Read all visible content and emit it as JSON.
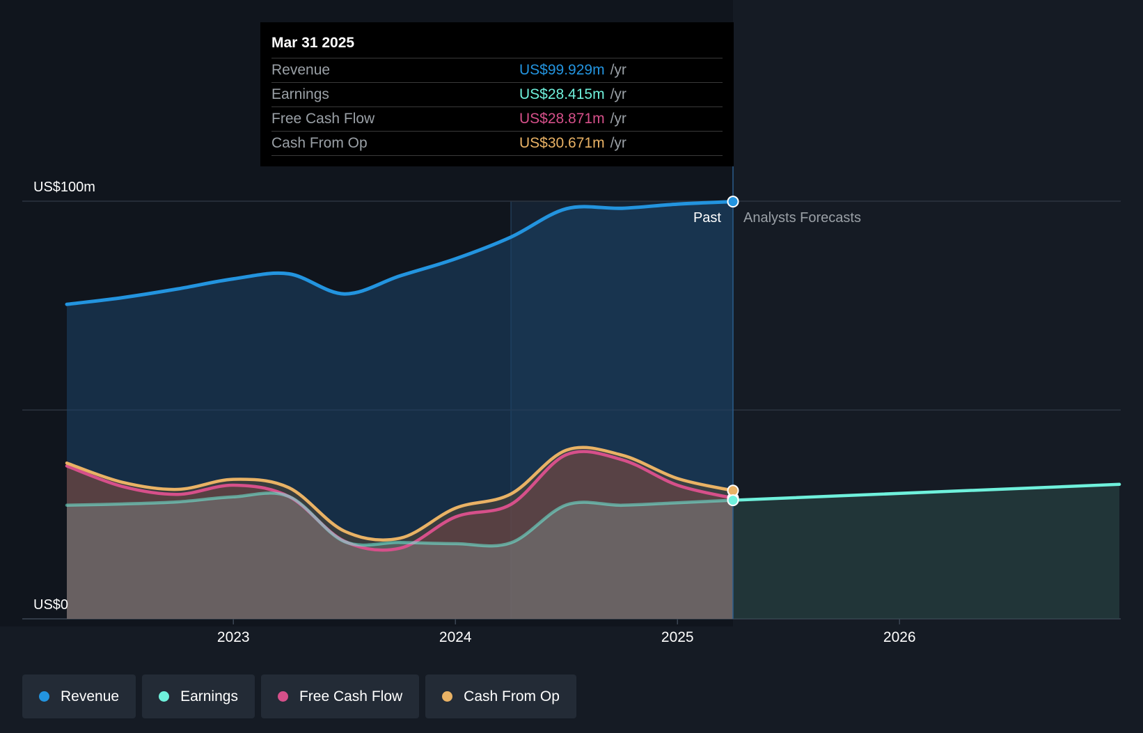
{
  "tooltip": {
    "date": "Mar 31 2025",
    "unit": "/yr",
    "rows": [
      {
        "label": "Revenue",
        "value": "US$99.929m",
        "color": "#2394df"
      },
      {
        "label": "Earnings",
        "value": "US$28.415m",
        "color": "#6ff1dc"
      },
      {
        "label": "Free Cash Flow",
        "value": "US$28.871m",
        "color": "#d6508a"
      },
      {
        "label": "Cash From Op",
        "value": "US$30.671m",
        "color": "#e9b265"
      }
    ]
  },
  "chart_data": {
    "type": "area",
    "title": "",
    "xlabel": "",
    "ylabel": "",
    "ylim": [
      0,
      100
    ],
    "xlim": [
      2022.05,
      2026.99
    ],
    "y_tick_labels": [
      {
        "value": 100,
        "label": "US$100m"
      },
      {
        "value": 0,
        "label": "US$0"
      }
    ],
    "gridlines": [
      0,
      50,
      100
    ],
    "x_ticks": [
      {
        "value": 2023,
        "label": "2023"
      },
      {
        "value": 2024,
        "label": "2024"
      },
      {
        "value": 2025,
        "label": "2025"
      },
      {
        "value": 2026,
        "label": "2026"
      }
    ],
    "past_label": "Past",
    "forecast_label": "Analysts Forecasts",
    "past_end": 2025.25,
    "highlight_start": 2024.25,
    "series": [
      {
        "name": "Revenue",
        "color": "#2394df",
        "x": [
          2022.25,
          2022.5,
          2022.75,
          2023.0,
          2023.25,
          2023.5,
          2023.75,
          2024.0,
          2024.25,
          2024.5,
          2024.75,
          2025.0,
          2025.25
        ],
        "values": [
          75.3,
          76.9,
          79.0,
          81.4,
          82.6,
          77.8,
          82.1,
          86.2,
          91.4,
          98.2,
          98.3,
          99.3,
          99.9
        ]
      },
      {
        "name": "Free Cash Flow",
        "color": "#d6508a",
        "x": [
          2022.25,
          2022.5,
          2022.75,
          2023.0,
          2023.25,
          2023.5,
          2023.75,
          2024.0,
          2024.25,
          2024.5,
          2024.75,
          2025.0,
          2025.25
        ],
        "values": [
          36.6,
          31.7,
          29.8,
          32.0,
          29.3,
          18.6,
          16.9,
          24.4,
          27.4,
          39.3,
          38.1,
          32.0,
          28.9
        ]
      },
      {
        "name": "Cash From Op",
        "color": "#e9b265",
        "x": [
          2022.25,
          2022.5,
          2022.75,
          2023.0,
          2023.25,
          2023.5,
          2023.75,
          2024.0,
          2024.25,
          2024.5,
          2024.75,
          2025.0,
          2025.25
        ],
        "values": [
          37.3,
          32.7,
          31.0,
          33.4,
          31.4,
          21.0,
          19.3,
          26.5,
          29.9,
          40.4,
          39.2,
          33.6,
          30.7
        ]
      },
      {
        "name": "Earnings",
        "color": "#6ff1dc",
        "x": [
          2022.25,
          2022.5,
          2022.75,
          2023.0,
          2023.25,
          2023.5,
          2023.75,
          2024.0,
          2024.25,
          2024.5,
          2024.75,
          2025.0,
          2025.25
        ],
        "values": [
          27.2,
          27.5,
          28.0,
          29.2,
          29.3,
          18.5,
          18.3,
          18.0,
          18.2,
          27.3,
          27.2,
          27.8,
          28.4
        ]
      },
      {
        "name": "Earnings Forecast",
        "color": "#6ff1dc",
        "forecast": true,
        "x": [
          2025.25,
          2026.99
        ],
        "values": [
          28.4,
          32.2
        ]
      }
    ]
  },
  "legend": [
    {
      "label": "Revenue",
      "color": "#2394df"
    },
    {
      "label": "Earnings",
      "color": "#6ff1dc"
    },
    {
      "label": "Free Cash Flow",
      "color": "#d6508a"
    },
    {
      "label": "Cash From Op",
      "color": "#e9b265"
    }
  ]
}
